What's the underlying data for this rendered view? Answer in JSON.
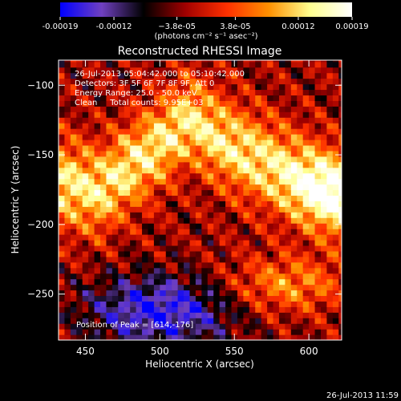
{
  "chart_data": {
    "type": "heatmap",
    "title": "Reconstructed RHESSI Image",
    "xlabel": "Heliocentric X (arcsec)",
    "ylabel": "Heliocentric Y (arcsec)",
    "xlim": [
      432,
      622
    ],
    "ylim": [
      -283,
      -82
    ],
    "x_ticks": [
      450,
      500,
      550,
      600
    ],
    "y_ticks": [
      -100,
      -150,
      -200,
      -250
    ],
    "colorbar": {
      "min": -0.00019,
      "max": 0.00019,
      "tick_values": [
        -0.00019,
        -0.00012,
        -3.8e-05,
        3.8e-05,
        0.00012,
        0.00019
      ],
      "tick_labels": [
        "-0.00019",
        "-0.00012",
        "−3.8e-05",
        "3.8e-05",
        "0.00012",
        "0.00019"
      ],
      "units": "(photons cm⁻² s⁻¹ asec⁻²)",
      "colors": [
        "#0000ff",
        "#7040c0",
        "#000000",
        "#a00000",
        "#ff3000",
        "#ff9000",
        "#ffff90",
        "#ffffff"
      ]
    },
    "annotations": [
      "26-Jul-2013 05:04:42.000 to 05:10:42.000",
      "Detectors: 3F 5F 6F 7F 8F 9F, Att 0",
      "Energy Range: 25.0 - 50.0 keV",
      "Clean     Total counts: 9.95E+03"
    ],
    "peak_label": "Position of Peak = [614,-176]",
    "peak": {
      "x": 614,
      "y": -176
    },
    "bright_band": {
      "path_x": [
        432,
        460,
        490,
        520,
        550,
        580,
        614,
        622
      ],
      "path_y": [
        -170,
        -175,
        -150,
        -125,
        -145,
        -160,
        -176,
        -180
      ]
    },
    "secondary_source": {
      "x": 585,
      "y": -243
    },
    "negative_region": {
      "x": 500,
      "y": -262
    }
  },
  "footer_timestamp": "26-Jul-2013 11:59"
}
